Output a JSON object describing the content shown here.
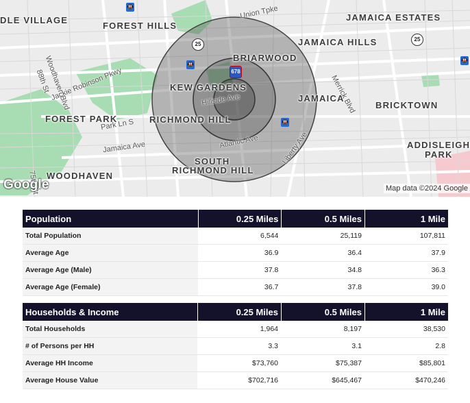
{
  "map": {
    "neighborhoods": [
      "DLE VILLAGE",
      "FOREST HILLS",
      "JAMAICA ESTATES",
      "JAMAICA HILLS",
      "BRIARWOOD",
      "KEW GARDENS",
      "JAMAICA",
      "BRICKTOWN",
      "FOREST PARK",
      "RICHMOND HILL",
      "ADDISLEIGH",
      "PARK",
      "SOUTH",
      "RICHMOND HILL",
      "WOODHAVEN"
    ],
    "roads": [
      "Union Tpke",
      "Woodhaven Blvd",
      "88th St",
      "Jackie Robinson Pkwy",
      "Hillside Ave",
      "Merrick Blvd",
      "Park Ln S",
      "Jamaica Ave",
      "Atlantic Ave",
      "Liberty Ave",
      "75th St"
    ],
    "shields": [
      "25",
      "25",
      "678"
    ],
    "logo": "Google",
    "attribution": "Map data ©2024 Google",
    "radius_labels": [
      "0.25 Miles",
      "0.5 Miles",
      "1 Mile"
    ]
  },
  "population": {
    "header": [
      "Population",
      "0.25 Miles",
      "0.5 Miles",
      "1 Mile"
    ],
    "rows": [
      [
        "Total Population",
        "6,544",
        "25,119",
        "107,811"
      ],
      [
        "Average Age",
        "36.9",
        "36.4",
        "37.9"
      ],
      [
        "Average Age (Male)",
        "37.8",
        "34.8",
        "36.3"
      ],
      [
        "Average Age (Female)",
        "36.7",
        "37.8",
        "39.0"
      ]
    ]
  },
  "households": {
    "header": [
      "Households & Income",
      "0.25 Miles",
      "0.5 Miles",
      "1 Mile"
    ],
    "rows": [
      [
        "Total Households",
        "1,964",
        "8,197",
        "38,530"
      ],
      [
        "# of Persons per HH",
        "3.3",
        "3.1",
        "2.8"
      ],
      [
        "Average HH Income",
        "$73,760",
        "$75,387",
        "$85,801"
      ],
      [
        "Average House Value",
        "$702,716",
        "$645,467",
        "$470,246"
      ]
    ]
  },
  "colors": {
    "header_bg": "#14112b",
    "park": "#8fd19e",
    "ring": "#555555"
  }
}
